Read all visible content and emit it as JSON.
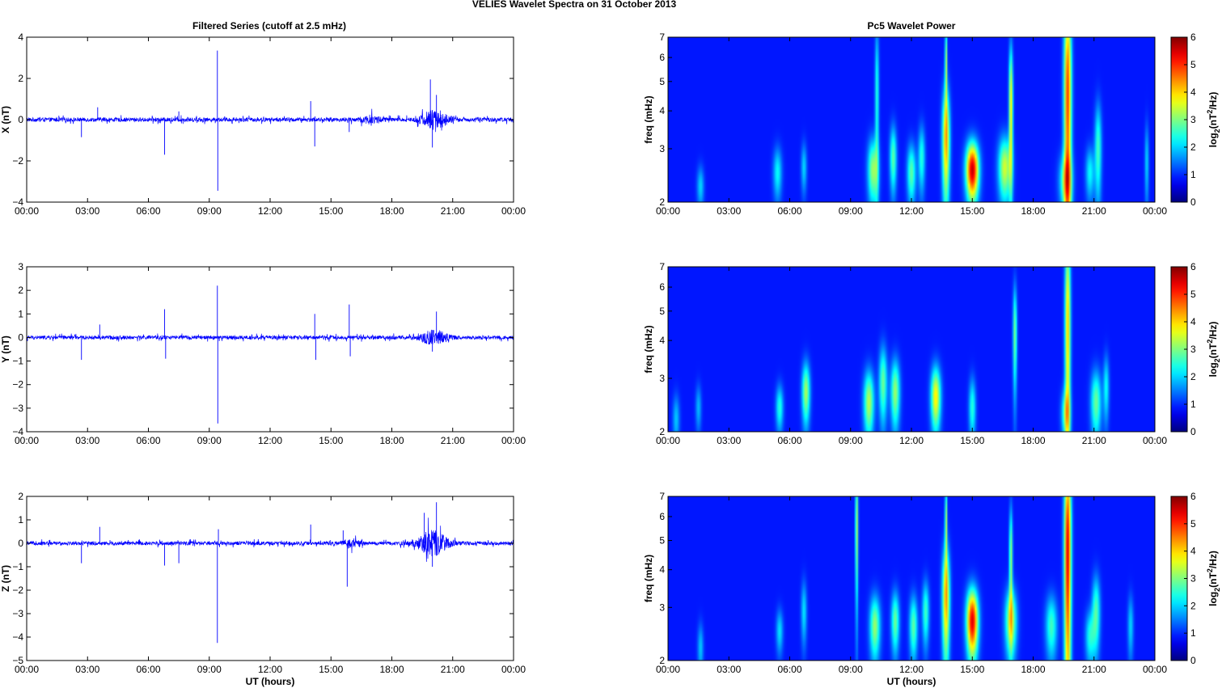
{
  "figure": {
    "title": "VELIES Wavelet Spectra on 31 October   2013",
    "left_title": "Filtered Series (cutoff at 2.5 mHz)",
    "right_title": "Pc5 Wavelet Power",
    "xlabel": "UT (hours)",
    "freq_label": "freq (mHz)",
    "colorbar_label_base": "log",
    "colorbar_label_sub": "2",
    "colorbar_label_mid": "(nT",
    "colorbar_label_sup": "2",
    "colorbar_label_end": "/Hz)"
  },
  "colors": {
    "series_line": "#0000ff",
    "spectrogram_background": "#00008f"
  },
  "chart_data": [
    {
      "type": "line",
      "title": "Filtered Series (cutoff at 2.5 mHz)",
      "ylabel": "X (nT)",
      "xlabel": "",
      "x_ticks": [
        "00:00",
        "03:00",
        "06:00",
        "09:00",
        "12:00",
        "15:00",
        "18:00",
        "21:00",
        "00:00"
      ],
      "xlim_hours": [
        0,
        24
      ],
      "ylim": [
        -4,
        4
      ],
      "y_ticks": [
        -4,
        -2,
        0,
        2,
        4
      ],
      "noise_amp": 0.1,
      "spikes": [
        {
          "t": 2.7,
          "v": -0.85
        },
        {
          "t": 3.5,
          "v": 0.6
        },
        {
          "t": 6.8,
          "v": -1.7
        },
        {
          "t": 7.5,
          "v": 0.4
        },
        {
          "t": 9.4,
          "v": 3.35
        },
        {
          "t": 9.42,
          "v": -3.45
        },
        {
          "t": 14.0,
          "v": 0.9
        },
        {
          "t": 14.2,
          "v": -1.3
        },
        {
          "t": 15.9,
          "v": -0.6
        },
        {
          "t": 19.9,
          "v": 1.95
        },
        {
          "t": 20.0,
          "v": -1.35
        },
        {
          "t": 20.2,
          "v": 1.2
        }
      ],
      "bursts": [
        {
          "t": 20.1,
          "w": 0.6,
          "amp": 0.45
        },
        {
          "t": 17.0,
          "w": 0.5,
          "amp": 0.15
        }
      ]
    },
    {
      "type": "line",
      "title": "",
      "ylabel": "Y (nT)",
      "xlabel": "",
      "x_ticks": [
        "00:00",
        "03:00",
        "06:00",
        "09:00",
        "12:00",
        "15:00",
        "18:00",
        "21:00",
        "00:00"
      ],
      "xlim_hours": [
        0,
        24
      ],
      "ylim": [
        -4,
        3
      ],
      "y_ticks": [
        -4,
        -3,
        -2,
        -1,
        0,
        1,
        2,
        3
      ],
      "noise_amp": 0.08,
      "spikes": [
        {
          "t": 2.7,
          "v": -0.95
        },
        {
          "t": 3.6,
          "v": 0.55
        },
        {
          "t": 6.8,
          "v": 1.2
        },
        {
          "t": 6.85,
          "v": -0.9
        },
        {
          "t": 9.4,
          "v": 2.2
        },
        {
          "t": 9.42,
          "v": -3.65
        },
        {
          "t": 14.2,
          "v": 1.0
        },
        {
          "t": 14.25,
          "v": -0.95
        },
        {
          "t": 15.9,
          "v": 1.4
        },
        {
          "t": 15.95,
          "v": -0.8
        },
        {
          "t": 20.2,
          "v": 1.1
        },
        {
          "t": 20.0,
          "v": -0.6
        }
      ],
      "bursts": [
        {
          "t": 20.1,
          "w": 0.6,
          "amp": 0.3
        }
      ]
    },
    {
      "type": "line",
      "title": "",
      "ylabel": "Z (nT)",
      "xlabel": "UT (hours)",
      "x_ticks": [
        "00:00",
        "03:00",
        "06:00",
        "09:00",
        "12:00",
        "15:00",
        "18:00",
        "21:00",
        "00:00"
      ],
      "xlim_hours": [
        0,
        24
      ],
      "ylim": [
        -5,
        2
      ],
      "y_ticks": [
        -5,
        -4,
        -3,
        -2,
        -1,
        0,
        1,
        2
      ],
      "noise_amp": 0.08,
      "spikes": [
        {
          "t": 2.7,
          "v": -0.85
        },
        {
          "t": 3.6,
          "v": 0.7
        },
        {
          "t": 6.8,
          "v": -0.95
        },
        {
          "t": 7.5,
          "v": -0.85
        },
        {
          "t": 9.4,
          "v": -4.25
        },
        {
          "t": 9.45,
          "v": 0.6
        },
        {
          "t": 14.0,
          "v": 0.8
        },
        {
          "t": 15.8,
          "v": -1.85
        },
        {
          "t": 15.6,
          "v": 0.55
        },
        {
          "t": 19.6,
          "v": 1.3
        },
        {
          "t": 20.2,
          "v": 1.75
        },
        {
          "t": 20.0,
          "v": -1.0
        }
      ],
      "bursts": [
        {
          "t": 20.0,
          "w": 0.7,
          "amp": 0.5
        },
        {
          "t": 16.0,
          "w": 0.4,
          "amp": 0.15
        }
      ]
    },
    {
      "type": "heatmap",
      "title": "Pc5 Wavelet Power",
      "ylabel": "freq (mHz)",
      "x_ticks": [
        "00:00",
        "03:00",
        "06:00",
        "09:00",
        "12:00",
        "15:00",
        "18:00",
        "21:00",
        "00:00"
      ],
      "y_ticks": [
        2,
        3,
        4,
        5,
        6,
        7
      ],
      "ylim_mhz": [
        2,
        7
      ],
      "colorbar_ticks": [
        0,
        1,
        2,
        3,
        4,
        5,
        6
      ],
      "colorbar_range": [
        0,
        6
      ],
      "blobs": [
        {
          "t": 1.6,
          "f": 2.25,
          "dt": 0.12,
          "df": 0.25,
          "v": 1.3
        },
        {
          "t": 5.4,
          "f": 2.5,
          "dt": 0.15,
          "df": 0.35,
          "v": 1.6
        },
        {
          "t": 6.7,
          "f": 2.6,
          "dt": 0.1,
          "df": 0.35,
          "v": 1.3
        },
        {
          "t": 10.1,
          "f": 2.55,
          "dt": 0.18,
          "df": 0.45,
          "v": 2.6
        },
        {
          "t": 10.3,
          "f": 4.5,
          "dt": 0.07,
          "df": 2.0,
          "v": 1.8
        },
        {
          "t": 11.1,
          "f": 2.8,
          "dt": 0.12,
          "df": 0.5,
          "v": 2.2
        },
        {
          "t": 12.0,
          "f": 2.5,
          "dt": 0.15,
          "df": 0.4,
          "v": 2.2
        },
        {
          "t": 12.5,
          "f": 2.8,
          "dt": 0.12,
          "df": 0.5,
          "v": 1.8
        },
        {
          "t": 13.7,
          "f": 3.2,
          "dt": 0.13,
          "df": 1.0,
          "v": 3.8
        },
        {
          "t": 13.7,
          "f": 5.8,
          "dt": 0.04,
          "df": 1.2,
          "v": 2.8
        },
        {
          "t": 15.0,
          "f": 2.55,
          "dt": 0.22,
          "df": 0.4,
          "v": 5.4
        },
        {
          "t": 16.6,
          "f": 2.6,
          "dt": 0.22,
          "df": 0.45,
          "v": 3.0
        },
        {
          "t": 16.9,
          "f": 4.2,
          "dt": 0.07,
          "df": 1.5,
          "v": 3.4
        },
        {
          "t": 19.7,
          "f": 4.5,
          "dt": 0.13,
          "df": 3.0,
          "v": 4.6
        },
        {
          "t": 19.6,
          "f": 2.35,
          "dt": 0.22,
          "df": 0.35,
          "v": 2.2
        },
        {
          "t": 21.2,
          "f": 3.0,
          "dt": 0.12,
          "df": 0.8,
          "v": 2.0
        },
        {
          "t": 20.8,
          "f": 2.5,
          "dt": 0.15,
          "df": 0.35,
          "v": 1.6
        },
        {
          "t": 23.6,
          "f": 2.7,
          "dt": 0.07,
          "df": 0.6,
          "v": 1.3
        }
      ]
    },
    {
      "type": "heatmap",
      "title": "",
      "ylabel": "freq (mHz)",
      "x_ticks": [
        "00:00",
        "03:00",
        "06:00",
        "09:00",
        "12:00",
        "15:00",
        "18:00",
        "21:00",
        "00:00"
      ],
      "y_ticks": [
        2,
        3,
        4,
        5,
        6,
        7
      ],
      "ylim_mhz": [
        2,
        7
      ],
      "colorbar_ticks": [
        0,
        1,
        2,
        3,
        4,
        5,
        6
      ],
      "colorbar_range": [
        0,
        6
      ],
      "blobs": [
        {
          "t": 0.4,
          "f": 2.2,
          "dt": 0.12,
          "df": 0.3,
          "v": 1.2
        },
        {
          "t": 1.5,
          "f": 2.4,
          "dt": 0.1,
          "df": 0.3,
          "v": 1.1
        },
        {
          "t": 5.5,
          "f": 2.4,
          "dt": 0.13,
          "df": 0.3,
          "v": 1.8
        },
        {
          "t": 6.8,
          "f": 2.7,
          "dt": 0.14,
          "df": 0.45,
          "v": 2.7
        },
        {
          "t": 9.9,
          "f": 2.5,
          "dt": 0.18,
          "df": 0.45,
          "v": 2.8
        },
        {
          "t": 10.6,
          "f": 2.9,
          "dt": 0.14,
          "df": 0.6,
          "v": 2.3
        },
        {
          "t": 11.2,
          "f": 2.7,
          "dt": 0.16,
          "df": 0.5,
          "v": 2.6
        },
        {
          "t": 13.2,
          "f": 2.6,
          "dt": 0.17,
          "df": 0.45,
          "v": 3.4
        },
        {
          "t": 15.0,
          "f": 2.4,
          "dt": 0.12,
          "df": 0.4,
          "v": 1.8
        },
        {
          "t": 17.1,
          "f": 4.2,
          "dt": 0.07,
          "df": 1.2,
          "v": 2.4
        },
        {
          "t": 19.7,
          "f": 4.5,
          "dt": 0.1,
          "df": 2.8,
          "v": 3.6
        },
        {
          "t": 19.6,
          "f": 2.3,
          "dt": 0.15,
          "df": 0.3,
          "v": 2.0
        },
        {
          "t": 21.1,
          "f": 2.5,
          "dt": 0.18,
          "df": 0.45,
          "v": 2.3
        },
        {
          "t": 21.6,
          "f": 2.8,
          "dt": 0.1,
          "df": 0.5,
          "v": 1.6
        }
      ]
    },
    {
      "type": "heatmap",
      "title": "",
      "ylabel": "freq (mHz)",
      "xlabel": "UT (hours)",
      "x_ticks": [
        "00:00",
        "03:00",
        "06:00",
        "09:00",
        "12:00",
        "15:00",
        "18:00",
        "21:00",
        "00:00"
      ],
      "y_ticks": [
        2,
        3,
        4,
        5,
        6,
        7
      ],
      "ylim_mhz": [
        2,
        7
      ],
      "colorbar_ticks": [
        0,
        1,
        2,
        3,
        4,
        5,
        6
      ],
      "colorbar_range": [
        0,
        6
      ],
      "blobs": [
        {
          "t": 1.6,
          "f": 2.2,
          "dt": 0.1,
          "df": 0.3,
          "v": 1.2
        },
        {
          "t": 5.5,
          "f": 2.5,
          "dt": 0.12,
          "df": 0.3,
          "v": 1.4
        },
        {
          "t": 6.7,
          "f": 2.9,
          "dt": 0.1,
          "df": 0.5,
          "v": 1.4
        },
        {
          "t": 9.3,
          "f": 5.5,
          "dt": 0.05,
          "df": 2.0,
          "v": 2.8
        },
        {
          "t": 10.2,
          "f": 2.6,
          "dt": 0.18,
          "df": 0.45,
          "v": 2.6
        },
        {
          "t": 11.2,
          "f": 2.7,
          "dt": 0.14,
          "df": 0.45,
          "v": 2.3
        },
        {
          "t": 12.1,
          "f": 2.6,
          "dt": 0.14,
          "df": 0.45,
          "v": 2.2
        },
        {
          "t": 12.7,
          "f": 2.9,
          "dt": 0.12,
          "df": 0.5,
          "v": 2.0
        },
        {
          "t": 13.7,
          "f": 3.2,
          "dt": 0.13,
          "df": 1.0,
          "v": 3.8
        },
        {
          "t": 13.7,
          "f": 5.8,
          "dt": 0.04,
          "df": 1.2,
          "v": 2.8
        },
        {
          "t": 15.0,
          "f": 2.7,
          "dt": 0.2,
          "df": 0.5,
          "v": 5.2
        },
        {
          "t": 16.9,
          "f": 2.7,
          "dt": 0.2,
          "df": 0.5,
          "v": 3.0
        },
        {
          "t": 16.9,
          "f": 4.4,
          "dt": 0.06,
          "df": 1.3,
          "v": 2.6
        },
        {
          "t": 19.7,
          "f": 4.6,
          "dt": 0.12,
          "df": 3.0,
          "v": 5.2
        },
        {
          "t": 18.9,
          "f": 2.6,
          "dt": 0.2,
          "df": 0.45,
          "v": 2.0
        },
        {
          "t": 21.1,
          "f": 2.9,
          "dt": 0.14,
          "df": 0.6,
          "v": 2.1
        },
        {
          "t": 20.8,
          "f": 2.4,
          "dt": 0.16,
          "df": 0.35,
          "v": 1.7
        },
        {
          "t": 22.8,
          "f": 2.6,
          "dt": 0.1,
          "df": 0.45,
          "v": 1.3
        }
      ]
    }
  ]
}
